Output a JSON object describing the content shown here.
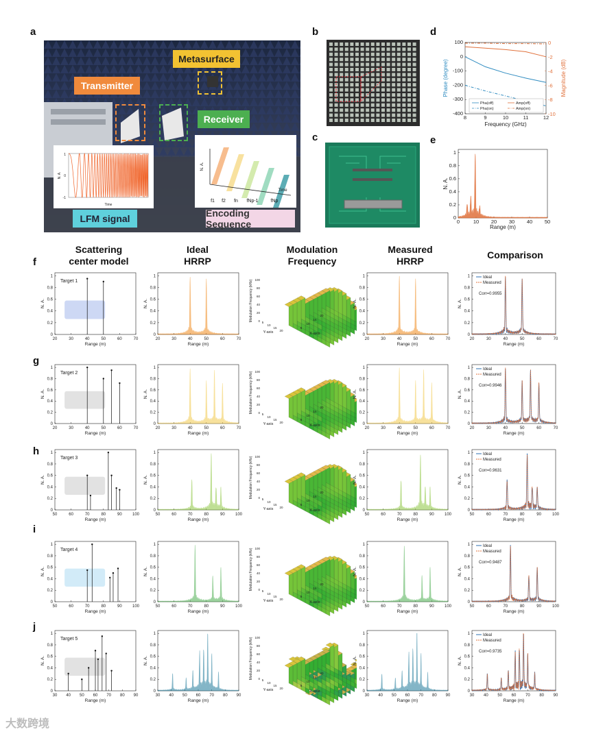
{
  "panel_labels": {
    "a": "a",
    "b": "b",
    "c": "c",
    "d": "d",
    "e": "e",
    "f": "f",
    "g": "g",
    "h": "h",
    "i": "i",
    "j": "j"
  },
  "panel_a": {
    "metasurface": "Metasurface",
    "transmitter": "Transmitter",
    "receiver": "Receiver",
    "lfm": "LFM signal",
    "encoding": "Encoding Sequence",
    "lfm_inset": {
      "ylabel": "N. A.",
      "xlabel": "Time",
      "y1": "1",
      "y0": "0",
      "ym1": "-1"
    },
    "enc_inset": {
      "ylabel": "N. A.",
      "xlabel": "Time",
      "seq": [
        "f1",
        "f2",
        "fn",
        "fNp-1",
        "fNp"
      ]
    },
    "colors": {
      "yellow": "#f2c232",
      "orange": "#f08a3c",
      "green": "#4caf50",
      "cyan": "#5fd0dc",
      "pink": "#f3d6e6"
    }
  },
  "column_headers": [
    "Scattering center model",
    "Ideal HRRP",
    "Modulation Frequency",
    "Measured HRRP",
    "Comparison"
  ],
  "chart_data": [
    {
      "id": "d",
      "type": "line",
      "xlabel": "Frequency (GHz)",
      "ylabel": "Phase (degree)",
      "y2label": "Magnitude (dB)",
      "xlim": [
        8,
        12
      ],
      "xticks": [
        8,
        9,
        10,
        11,
        12
      ],
      "ylim": [
        -400,
        100
      ],
      "yticks": [
        100,
        0,
        -100,
        -200,
        -300,
        -400
      ],
      "y2lim": [
        -10,
        0
      ],
      "y2ticks": [
        0,
        -2,
        -4,
        -6,
        -8,
        -10
      ],
      "series": [
        {
          "name": "Pha(off)",
          "axis": "left",
          "color": "#2e8bc0",
          "dash": "solid",
          "x": [
            8,
            9,
            10,
            11,
            12
          ],
          "values": [
            0,
            -70,
            -115,
            -150,
            -180
          ]
        },
        {
          "name": "Pha(on)",
          "axis": "left",
          "color": "#2e8bc0",
          "dash": "dashdot",
          "x": [
            8,
            9,
            10,
            11,
            12
          ],
          "values": [
            -200,
            -240,
            -275,
            -310,
            -345
          ]
        },
        {
          "name": "Amp(off)",
          "axis": "right",
          "color": "#e0703a",
          "dash": "solid",
          "x": [
            8,
            9,
            10,
            11,
            12
          ],
          "values": [
            -0.6,
            -0.8,
            -1.0,
            -1.3,
            -2.0
          ]
        },
        {
          "name": "Amp(on)",
          "axis": "right",
          "color": "#e0703a",
          "dash": "dashdot",
          "x": [
            8,
            9,
            10,
            11,
            12
          ],
          "values": [
            -0.1,
            -0.1,
            -0.15,
            -0.15,
            -0.2
          ]
        }
      ]
    },
    {
      "id": "e",
      "type": "area",
      "xlabel": "Range (m)",
      "ylabel": "N. A.",
      "xlim": [
        0,
        50
      ],
      "xticks": [
        0,
        10,
        20,
        30,
        40,
        50
      ],
      "ylim": [
        0,
        1.05
      ],
      "yticks": [
        0,
        0.2,
        0.4,
        0.6,
        0.8,
        1
      ],
      "color": "#e0703a",
      "peaks": [
        {
          "x": 5,
          "h": 0.2
        },
        {
          "x": 7,
          "h": 0.3
        },
        {
          "x": 9.5,
          "h": 1.0
        },
        {
          "x": 12,
          "h": 0.15
        }
      ]
    },
    {
      "id": "f",
      "label": "Target 1",
      "xlim": [
        20,
        70
      ],
      "xticks": [
        20,
        30,
        40,
        50,
        60,
        70
      ],
      "color": "#f08a1c",
      "corr": "Corr=0.9955",
      "scatter": [
        {
          "x": 40,
          "h": 0.95
        },
        {
          "x": 50,
          "h": 0.9
        }
      ],
      "peaks": [
        {
          "x": 40,
          "h": 1.0
        },
        {
          "x": 50,
          "h": 0.95
        }
      ],
      "surface": "gold"
    },
    {
      "id": "g",
      "label": "Target 2",
      "xlim": [
        20,
        70
      ],
      "xticks": [
        20,
        30,
        40,
        50,
        60,
        70
      ],
      "color": "#f2c94c",
      "corr": "Corr=0.9946",
      "scatter": [
        {
          "x": 40,
          "h": 1.0
        },
        {
          "x": 50,
          "h": 0.8
        },
        {
          "x": 55,
          "h": 0.95
        },
        {
          "x": 60,
          "h": 0.72
        }
      ],
      "peaks": [
        {
          "x": 40,
          "h": 1.0
        },
        {
          "x": 50,
          "h": 0.75
        },
        {
          "x": 55,
          "h": 0.93
        },
        {
          "x": 60,
          "h": 0.7
        }
      ],
      "surface": "gold"
    },
    {
      "id": "h",
      "label": "Target 3",
      "xlim": [
        50,
        100
      ],
      "xticks": [
        50,
        60,
        70,
        80,
        90,
        100
      ],
      "color": "#8cc63f",
      "corr": "Corr=0.9631",
      "scatter": [
        {
          "x": 70,
          "h": 0.6
        },
        {
          "x": 72,
          "h": 0.25
        },
        {
          "x": 83,
          "h": 1.0
        },
        {
          "x": 85,
          "h": 0.6
        },
        {
          "x": 88,
          "h": 0.38
        },
        {
          "x": 90,
          "h": 0.35
        }
      ],
      "peaks": [
        {
          "x": 71,
          "h": 0.55
        },
        {
          "x": 83,
          "h": 1.0
        },
        {
          "x": 86,
          "h": 0.4
        },
        {
          "x": 89,
          "h": 0.38
        }
      ],
      "surface": "gold"
    },
    {
      "id": "i",
      "label": "Target 4",
      "xlim": [
        50,
        100
      ],
      "xticks": [
        50,
        60,
        70,
        80,
        90,
        100
      ],
      "color": "#4caf50",
      "corr": "Corr=0.9487",
      "scatter": [
        {
          "x": 70,
          "h": 0.55
        },
        {
          "x": 73,
          "h": 1.0
        },
        {
          "x": 84,
          "h": 0.42
        },
        {
          "x": 86,
          "h": 0.5
        },
        {
          "x": 89,
          "h": 0.58
        }
      ],
      "peaks": [
        {
          "x": 73,
          "h": 1.0
        },
        {
          "x": 84,
          "h": 0.45
        },
        {
          "x": 89,
          "h": 0.6
        }
      ],
      "surface": "gold"
    },
    {
      "id": "j",
      "label": "Target 5",
      "xlim": [
        30,
        90
      ],
      "xticks": [
        30,
        40,
        50,
        60,
        70,
        80,
        90
      ],
      "color": "#1f7a9a",
      "corr": "Corr=0.9735",
      "scatter": [
        {
          "x": 40,
          "h": 0.3
        },
        {
          "x": 50,
          "h": 0.2
        },
        {
          "x": 55,
          "h": 0.4
        },
        {
          "x": 60,
          "h": 0.7
        },
        {
          "x": 62,
          "h": 0.55
        },
        {
          "x": 65,
          "h": 0.95
        },
        {
          "x": 68,
          "h": 0.65
        },
        {
          "x": 72,
          "h": 0.35
        }
      ],
      "peaks": [
        {
          "x": 41,
          "h": 0.3
        },
        {
          "x": 51,
          "h": 0.22
        },
        {
          "x": 56,
          "h": 0.35
        },
        {
          "x": 61,
          "h": 0.68
        },
        {
          "x": 64,
          "h": 0.75
        },
        {
          "x": 67,
          "h": 1.0
        },
        {
          "x": 70,
          "h": 0.6
        },
        {
          "x": 75,
          "h": 0.3
        }
      ],
      "surface": "mix"
    }
  ],
  "common_axes": {
    "ylabel": "N. A.",
    "xlabel": "Range (m)",
    "yticks": [
      "0",
      "0.2",
      "0.4",
      "0.6",
      "0.8",
      "1"
    ],
    "surf_zlabel": "Modulation Frequency (kHz)",
    "surf_xlabel": "X-axis",
    "surf_ylabel": "Y-axis",
    "legend_ideal": "Ideal",
    "legend_measured": "Measured"
  },
  "watermark": "大数跨境"
}
